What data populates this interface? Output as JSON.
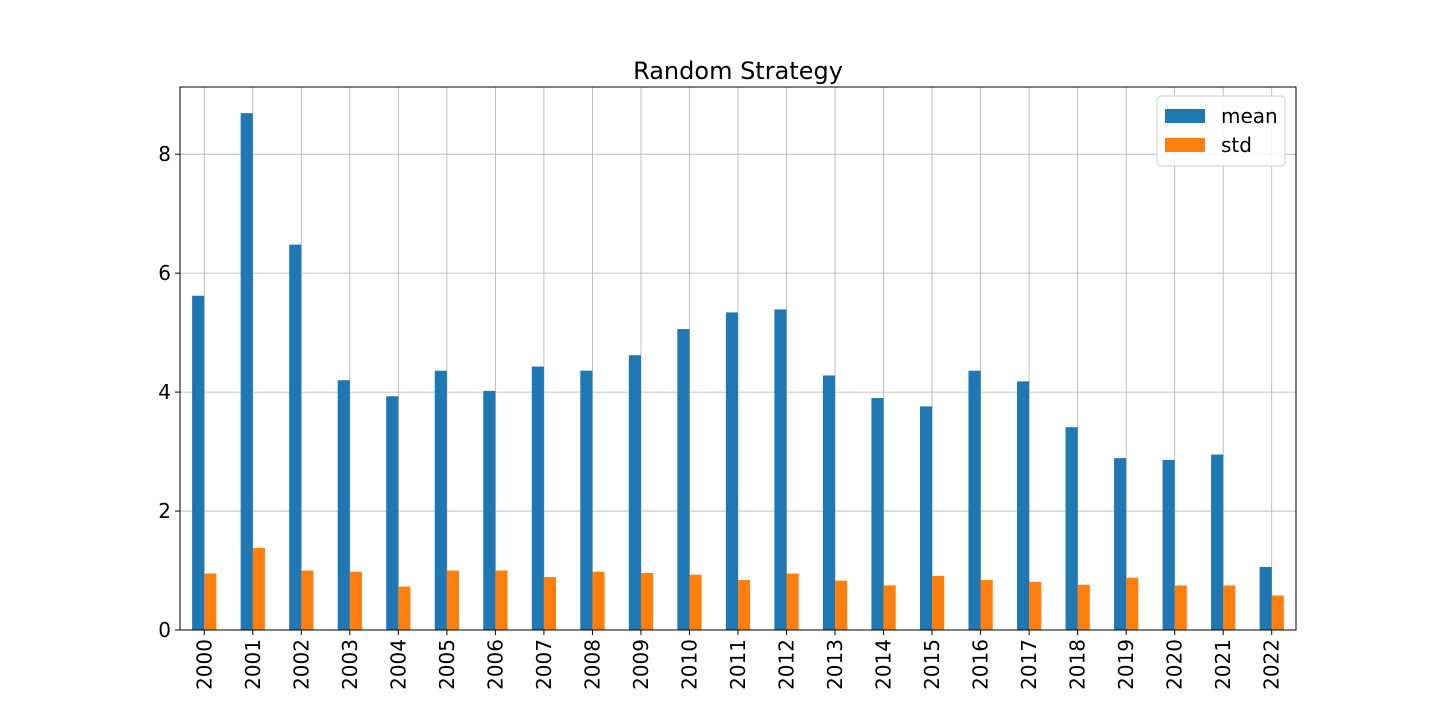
{
  "chart_data": {
    "type": "bar",
    "title": "Random Strategy",
    "xlabel": "",
    "ylabel": "",
    "categories": [
      "2000",
      "2001",
      "2002",
      "2003",
      "2004",
      "2005",
      "2006",
      "2007",
      "2008",
      "2009",
      "2010",
      "2011",
      "2012",
      "2013",
      "2014",
      "2015",
      "2016",
      "2017",
      "2018",
      "2019",
      "2020",
      "2021",
      "2022"
    ],
    "series": [
      {
        "name": "mean",
        "color": "#1f77b4",
        "values": [
          5.62,
          8.69,
          6.48,
          4.2,
          3.93,
          4.36,
          4.02,
          4.43,
          4.36,
          4.62,
          5.06,
          5.34,
          5.39,
          4.28,
          3.9,
          3.76,
          4.36,
          4.18,
          3.41,
          2.89,
          2.86,
          2.95,
          1.06
        ]
      },
      {
        "name": "std",
        "color": "#ff7f0e",
        "values": [
          0.95,
          1.38,
          1.0,
          0.98,
          0.73,
          1.0,
          1.0,
          0.89,
          0.98,
          0.96,
          0.93,
          0.84,
          0.95,
          0.83,
          0.75,
          0.91,
          0.84,
          0.81,
          0.76,
          0.88,
          0.75,
          0.75,
          0.58
        ]
      }
    ],
    "ylim": [
      0,
      9.13
    ],
    "yticks": [
      0,
      2,
      4,
      6,
      8
    ],
    "grid": true,
    "legend_position": "top-right"
  }
}
